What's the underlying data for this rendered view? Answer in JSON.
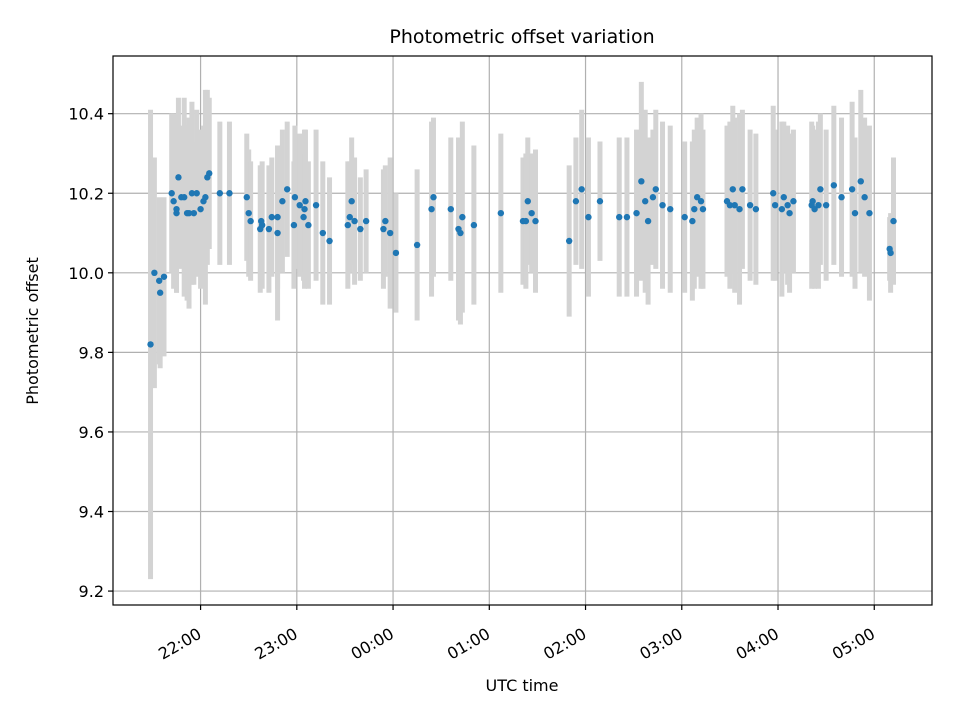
{
  "chart_data": {
    "type": "scatter",
    "title": "Photometric offset variation",
    "xlabel": "UTC time",
    "ylabel": "Photometric offset",
    "x_axis_kind": "time",
    "x_tick_labels": [
      "22:00",
      "23:00",
      "00:00",
      "01:00",
      "02:00",
      "03:00",
      "04:00",
      "05:00"
    ],
    "x_tick_hours": [
      22,
      23,
      24,
      25,
      26,
      27,
      28,
      29
    ],
    "xlim_hours": [
      21.09,
      29.6
    ],
    "ylim": [
      9.165,
      10.545
    ],
    "y_ticks": [
      9.2,
      9.4,
      9.6,
      9.8,
      10.0,
      10.2,
      10.4
    ],
    "y_tick_labels": [
      "9.2",
      "9.4",
      "9.6",
      "9.8",
      "10.0",
      "10.2",
      "10.4"
    ],
    "grid": true,
    "colors": {
      "points": "#1f77b4",
      "errorbars": "#d3d3d3",
      "grid": "#b0b0b0"
    },
    "series": [
      {
        "hours": [
          21.48,
          21.52,
          21.57,
          21.58,
          21.62,
          21.7,
          21.72,
          21.75,
          21.75,
          21.77,
          21.8,
          21.83,
          21.86,
          21.88,
          21.91,
          21.93,
          21.96,
          22.0,
          22.03,
          22.05,
          22.07,
          22.09,
          22.2,
          22.3,
          22.48,
          22.5,
          22.52,
          22.62,
          22.63,
          22.64,
          22.71,
          22.74,
          22.8,
          22.8,
          22.85,
          22.9,
          22.97,
          22.98,
          23.03,
          23.07,
          23.08,
          23.09,
          23.12,
          23.2,
          23.27,
          23.34,
          23.53,
          23.55,
          23.57,
          23.6,
          23.66,
          23.72,
          23.9,
          23.92,
          23.97,
          24.03,
          24.25,
          24.4,
          24.42,
          24.6,
          24.68,
          24.7,
          24.72,
          24.84,
          25.12,
          25.35,
          25.38,
          25.4,
          25.44,
          25.48,
          25.83,
          25.9,
          25.96,
          26.03,
          26.15,
          26.35,
          26.43,
          26.53,
          26.58,
          26.62,
          26.65,
          26.7,
          26.73,
          26.8,
          26.88,
          27.03,
          27.11,
          27.13,
          27.16,
          27.2,
          27.22,
          27.47,
          27.5,
          27.53,
          27.55,
          27.6,
          27.63,
          27.71,
          27.77,
          27.95,
          27.97,
          28.04,
          28.06,
          28.1,
          28.12,
          28.16,
          28.35,
          28.36,
          28.38,
          28.42,
          28.44,
          28.5,
          28.58,
          28.66,
          28.77,
          28.8,
          28.86,
          28.9,
          28.95,
          29.16,
          29.17,
          29.2
        ],
        "values": [
          9.82,
          10.0,
          9.98,
          9.95,
          9.99,
          10.2,
          10.18,
          10.15,
          10.16,
          10.24,
          10.19,
          10.19,
          10.15,
          10.15,
          10.2,
          10.15,
          10.2,
          10.16,
          10.18,
          10.19,
          10.24,
          10.25,
          10.2,
          10.2,
          10.19,
          10.15,
          10.13,
          10.11,
          10.13,
          10.12,
          10.11,
          10.14,
          10.1,
          10.14,
          10.18,
          10.21,
          10.12,
          10.19,
          10.17,
          10.14,
          10.16,
          10.18,
          10.12,
          10.17,
          10.1,
          10.08,
          10.12,
          10.14,
          10.18,
          10.13,
          10.11,
          10.13,
          10.11,
          10.13,
          10.1,
          10.05,
          10.07,
          10.16,
          10.19,
          10.16,
          10.11,
          10.1,
          10.14,
          10.12,
          10.15,
          10.13,
          10.13,
          10.18,
          10.15,
          10.13,
          10.08,
          10.18,
          10.21,
          10.14,
          10.18,
          10.14,
          10.14,
          10.15,
          10.23,
          10.18,
          10.13,
          10.19,
          10.21,
          10.17,
          10.16,
          10.14,
          10.13,
          10.16,
          10.19,
          10.18,
          10.16,
          10.18,
          10.17,
          10.21,
          10.17,
          10.16,
          10.21,
          10.17,
          10.16,
          10.2,
          10.17,
          10.16,
          10.19,
          10.17,
          10.15,
          10.18,
          10.17,
          10.18,
          10.16,
          10.17,
          10.21,
          10.17,
          10.22,
          10.19,
          10.21,
          10.15,
          10.23,
          10.19,
          10.15,
          10.06,
          10.05,
          10.13
        ],
        "errors": [
          0.59,
          0.29,
          0.21,
          0.19,
          0.2,
          0.2,
          0.22,
          0.2,
          0.21,
          0.2,
          0.18,
          0.25,
          0.22,
          0.24,
          0.23,
          0.18,
          0.21,
          0.2,
          0.19,
          0.27,
          0.22,
          0.19,
          0.18,
          0.18,
          0.16,
          0.16,
          0.15,
          0.16,
          0.14,
          0.16,
          0.16,
          0.15,
          0.22,
          0.18,
          0.18,
          0.17,
          0.16,
          0.18,
          0.18,
          0.16,
          0.2,
          0.18,
          0.16,
          0.19,
          0.18,
          0.16,
          0.16,
          0.14,
          0.16,
          0.16,
          0.13,
          0.13,
          0.15,
          0.14,
          0.19,
          0.15,
          0.19,
          0.22,
          0.2,
          0.18,
          0.23,
          0.23,
          0.24,
          0.2,
          0.2,
          0.16,
          0.17,
          0.16,
          0.15,
          0.18,
          0.19,
          0.16,
          0.2,
          0.2,
          0.15,
          0.2,
          0.2,
          0.21,
          0.25,
          0.23,
          0.21,
          0.17,
          0.2,
          0.21,
          0.21,
          0.19,
          0.2,
          0.2,
          0.2,
          0.22,
          0.2,
          0.19,
          0.21,
          0.21,
          0.22,
          0.24,
          0.2,
          0.19,
          0.19,
          0.22,
          0.19,
          0.22,
          0.19,
          0.2,
          0.2,
          0.18,
          0.21,
          0.19,
          0.2,
          0.21,
          0.19,
          0.19,
          0.2,
          0.2,
          0.22,
          0.19,
          0.23,
          0.2,
          0.22,
          0.08,
          0.1,
          0.16
        ]
      }
    ]
  }
}
